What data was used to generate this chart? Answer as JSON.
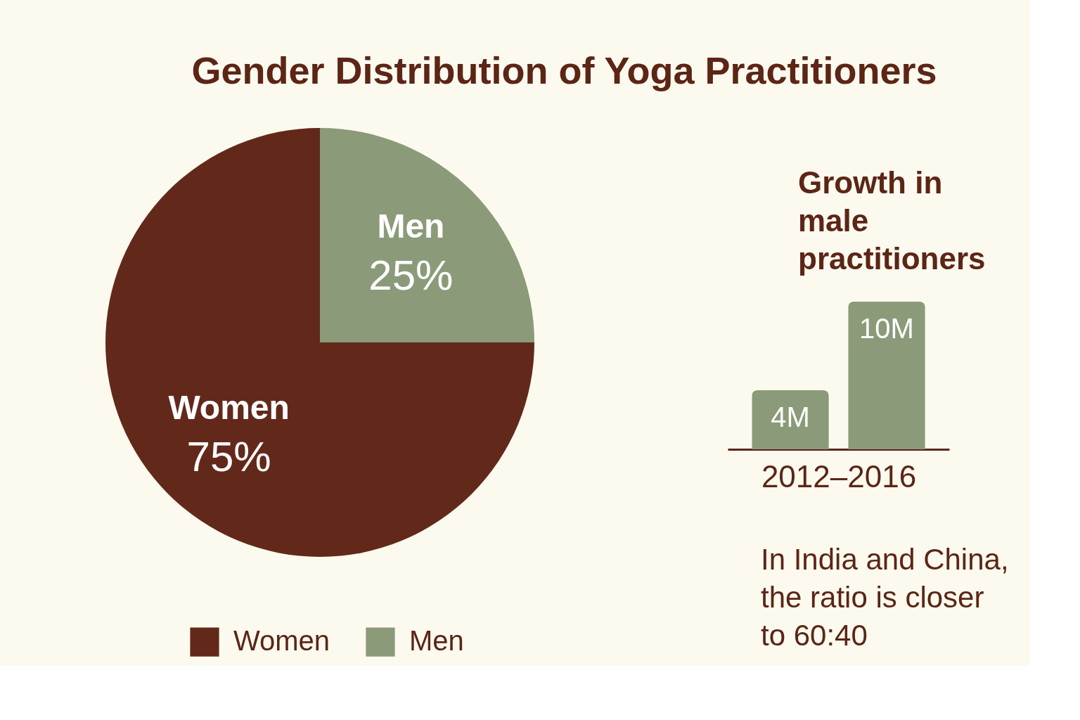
{
  "chart_data": [
    {
      "type": "pie",
      "title": "Gender Distribution of Yoga Practitioners",
      "categories": [
        "Women",
        "Men"
      ],
      "values": [
        75,
        25
      ],
      "colors": [
        "#62291a",
        "#8b9a79"
      ],
      "value_labels": [
        "75%",
        "25%"
      ],
      "legend": "bottom"
    },
    {
      "type": "bar",
      "title": "Growth in male practitioners",
      "categories": [
        null,
        null
      ],
      "values": [
        4,
        10
      ],
      "color": "#8b9a79",
      "value_labels": [
        "4M",
        "10M"
      ],
      "xlabel": "2012–2016"
    },
    {
      "type": "other",
      "annotations": [
        "In India and China, the ratio is closer to 60:40"
      ]
    }
  ]
}
